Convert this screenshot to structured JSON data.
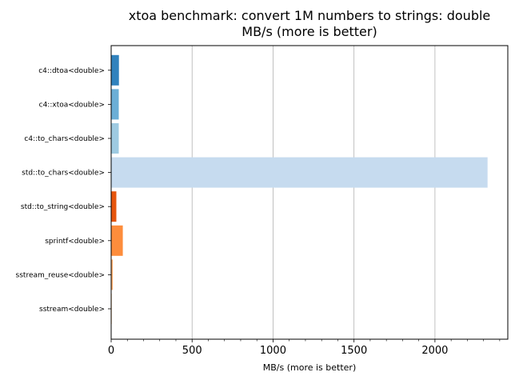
{
  "chart_data": {
    "type": "bar",
    "orientation": "horizontal",
    "title_lines": [
      "xtoa benchmark: convert 1M numbers to strings: double",
      "MB/s (more is better)"
    ],
    "xlabel": "MB/s (more is better)",
    "ylabel": "",
    "xlim": [
      0,
      2450
    ],
    "xticks": [
      0,
      500,
      1000,
      1500,
      2000
    ],
    "xtick_labels": [
      "0",
      "500",
      "1000",
      "1500",
      "2000"
    ],
    "grid": "x-major",
    "categories": [
      "c4::dtoa<double>",
      "c4::xtoa<double>",
      "c4::to_chars<double>",
      "std::to_chars<double>",
      "std::to_string<double>",
      "sprintf<double>",
      "sstream_reuse<double>",
      "sstream<double>"
    ],
    "values": [
      48,
      47,
      47,
      2325,
      32,
      72,
      10,
      4
    ],
    "colors": [
      "#3182bd",
      "#6baed6",
      "#9ecae1",
      "#c6dbef",
      "#e6550d",
      "#fd8d3c",
      "#fdae6b",
      "#fdd0a2"
    ]
  }
}
